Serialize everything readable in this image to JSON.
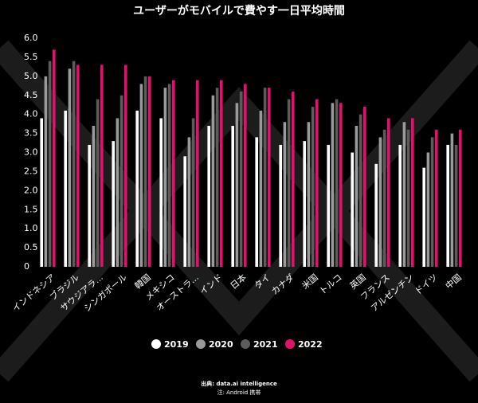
{
  "chart_data": {
    "type": "bar",
    "title": "ユーザーがモバイルで費やす一日平均時間",
    "categories": [
      "インドネシア",
      "ブラジル",
      "サウジアラ...",
      "シンガポール",
      "韓国",
      "メキシコ",
      "オーストラ...",
      "インド",
      "日本",
      "タイ",
      "カナダ",
      "米国",
      "トルコ",
      "英国",
      "フランス",
      "アルゼンチン",
      "ドイツ",
      "中国"
    ],
    "series": [
      {
        "name": "2019",
        "color": "#ffffff",
        "values": [
          3.9,
          4.1,
          3.2,
          3.3,
          4.1,
          3.9,
          2.9,
          3.7,
          3.7,
          3.4,
          3.2,
          3.3,
          3.2,
          3.0,
          2.7,
          3.2,
          2.6,
          3.2
        ]
      },
      {
        "name": "2020",
        "color": "#9a9a9a",
        "values": [
          5.0,
          5.2,
          3.7,
          3.9,
          4.8,
          4.7,
          3.4,
          4.5,
          4.3,
          4.1,
          3.8,
          3.8,
          4.3,
          3.7,
          3.4,
          3.8,
          3.0,
          3.5
        ]
      },
      {
        "name": "2021",
        "color": "#5c5c5c",
        "values": [
          5.4,
          5.4,
          4.4,
          4.5,
          5.0,
          4.8,
          3.9,
          4.7,
          4.6,
          4.7,
          4.4,
          4.2,
          4.4,
          4.0,
          3.6,
          3.6,
          3.4,
          3.2
        ]
      },
      {
        "name": "2022",
        "color": "#e3116c",
        "values": [
          5.7,
          5.3,
          5.3,
          5.3,
          5.0,
          4.9,
          4.9,
          4.9,
          4.8,
          4.7,
          4.6,
          4.4,
          4.3,
          4.2,
          3.9,
          3.9,
          3.6,
          3.6
        ]
      }
    ],
    "ylim": [
      0,
      6
    ],
    "yticks": [
      0,
      0.5,
      {
        "value": 1,
        "label": "1.0"
      },
      1.5,
      {
        "value": 2,
        "label": "2.0"
      },
      2.5,
      {
        "value": 3,
        "label": "3.0"
      },
      3.5,
      {
        "value": 4,
        "label": "4.0"
      },
      4.5,
      {
        "value": 5,
        "label": "5.0"
      },
      5.5,
      {
        "value": 6,
        "label": "6.0"
      }
    ],
    "source": "出典: data.ai intelligence",
    "note": "注: Android 携帯"
  }
}
